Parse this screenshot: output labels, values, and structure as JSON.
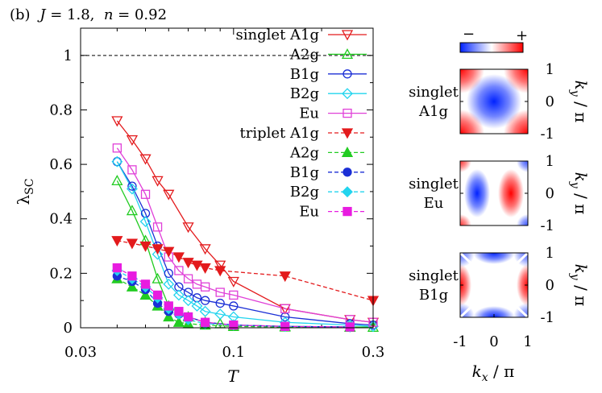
{
  "figure": {
    "panel_tag": "(b)",
    "title_math": {
      "J_symbol": "J",
      "J_eq": " = 1.8,  ",
      "n_symbol": "n",
      "n_eq": " = 0.92"
    }
  },
  "chart_data": {
    "type": "line",
    "x_scale": "log",
    "xlim": [
      0.03,
      0.3
    ],
    "ylim": [
      0,
      1.1
    ],
    "xlabel": "T",
    "ylabel": {
      "main": "λ",
      "sub": "SC"
    },
    "x_ticks": [
      {
        "value": 0.03,
        "label": "0.03"
      },
      {
        "value": 0.1,
        "label": "0.1"
      },
      {
        "value": 0.3,
        "label": "0.3"
      }
    ],
    "y_ticks": [
      {
        "value": 0,
        "label": "0"
      },
      {
        "value": 0.2,
        "label": "0.2"
      },
      {
        "value": 0.4,
        "label": "0.4"
      },
      {
        "value": 0.6,
        "label": "0.6"
      },
      {
        "value": 0.8,
        "label": "0.8"
      },
      {
        "value": 1,
        "label": "1"
      }
    ],
    "reference_line": {
      "y": 1.0,
      "style": "dashed"
    },
    "legend_placement": "top-right",
    "series": [
      {
        "name": "A1g",
        "legend_label": "singlet A1g",
        "color": "#e31a1c",
        "marker": "triangle-down-open",
        "dash": "solid",
        "x": [
          0.04,
          0.045,
          0.05,
          0.055,
          0.06,
          0.07,
          0.08,
          0.09,
          0.1,
          0.15,
          0.25,
          0.3
        ],
        "y": [
          0.76,
          0.69,
          0.62,
          0.54,
          0.49,
          0.37,
          0.29,
          0.23,
          0.17,
          0.07,
          0.03,
          0.02
        ]
      },
      {
        "name": "A2g",
        "legend_label": "A2g",
        "color": "#22cc22",
        "marker": "triangle-up-open",
        "dash": "solid",
        "x": [
          0.04,
          0.045,
          0.05,
          0.055,
          0.06,
          0.07,
          0.08,
          0.09,
          0.1,
          0.15,
          0.25,
          0.3
        ],
        "y": [
          0.54,
          0.43,
          0.32,
          0.18,
          0.08,
          0.04,
          0.02,
          0.015,
          0.01,
          0.005,
          0.003,
          0.002
        ]
      },
      {
        "name": "B1g",
        "legend_label": "B1g",
        "color": "#1b2fd6",
        "marker": "circle-open",
        "dash": "solid",
        "x": [
          0.04,
          0.045,
          0.05,
          0.055,
          0.06,
          0.065,
          0.07,
          0.075,
          0.08,
          0.09,
          0.1,
          0.15,
          0.25,
          0.3
        ],
        "y": [
          0.61,
          0.52,
          0.42,
          0.3,
          0.2,
          0.15,
          0.13,
          0.11,
          0.1,
          0.09,
          0.08,
          0.04,
          0.015,
          0.01
        ]
      },
      {
        "name": "B2g",
        "legend_label": "B2g",
        "color": "#22d4ee",
        "marker": "diamond-open",
        "dash": "solid",
        "x": [
          0.04,
          0.045,
          0.05,
          0.055,
          0.06,
          0.065,
          0.07,
          0.075,
          0.08,
          0.09,
          0.1,
          0.15,
          0.25,
          0.3
        ],
        "y": [
          0.61,
          0.51,
          0.39,
          0.27,
          0.16,
          0.12,
          0.1,
          0.08,
          0.06,
          0.05,
          0.04,
          0.02,
          0.01,
          0.005
        ]
      },
      {
        "name": "Eu",
        "legend_label": "Eu",
        "color": "#e040d8",
        "marker": "square-open",
        "dash": "solid",
        "x": [
          0.04,
          0.045,
          0.05,
          0.055,
          0.06,
          0.065,
          0.07,
          0.075,
          0.08,
          0.09,
          0.1,
          0.15,
          0.25,
          0.3
        ],
        "y": [
          0.66,
          0.58,
          0.49,
          0.37,
          0.26,
          0.21,
          0.18,
          0.16,
          0.15,
          0.13,
          0.12,
          0.07,
          0.03,
          0.02
        ]
      },
      {
        "name": "triplet A1g",
        "legend_label": "triplet A1g",
        "color": "#e31a1c",
        "marker": "triangle-down-filled",
        "dash": "dashed",
        "x": [
          0.04,
          0.045,
          0.05,
          0.055,
          0.06,
          0.065,
          0.07,
          0.075,
          0.08,
          0.09,
          0.15,
          0.3
        ],
        "y": [
          0.32,
          0.31,
          0.3,
          0.29,
          0.28,
          0.26,
          0.24,
          0.23,
          0.22,
          0.21,
          0.19,
          0.1
        ]
      },
      {
        "name": "triplet A2g",
        "legend_label": "A2g",
        "color": "#22cc22",
        "marker": "triangle-up-filled",
        "dash": "dashed",
        "x": [
          0.04,
          0.045,
          0.05,
          0.055,
          0.06,
          0.065,
          0.07,
          0.08,
          0.1,
          0.15,
          0.25
        ],
        "y": [
          0.18,
          0.15,
          0.12,
          0.08,
          0.04,
          0.02,
          0.015,
          0.01,
          0.005,
          0.003,
          0.002
        ]
      },
      {
        "name": "triplet B1g",
        "legend_label": "B1g",
        "color": "#1b2fd6",
        "marker": "circle-filled",
        "dash": "dashed",
        "x": [
          0.04,
          0.045,
          0.05,
          0.055,
          0.06,
          0.065,
          0.07,
          0.08,
          0.1,
          0.15,
          0.25
        ],
        "y": [
          0.19,
          0.17,
          0.14,
          0.09,
          0.06,
          0.05,
          0.04,
          0.02,
          0.01,
          0.005,
          0.003
        ]
      },
      {
        "name": "triplet B2g",
        "legend_label": "B2g",
        "color": "#22d4ee",
        "marker": "diamond-filled",
        "dash": "dashed",
        "x": [
          0.04,
          0.045,
          0.05,
          0.055,
          0.06,
          0.065,
          0.07,
          0.08,
          0.1,
          0.15,
          0.25
        ],
        "y": [
          0.21,
          0.18,
          0.15,
          0.11,
          0.07,
          0.05,
          0.03,
          0.015,
          0.01,
          0.005,
          0.003
        ]
      },
      {
        "name": "triplet Eu",
        "legend_label": "Eu",
        "color": "#e81ce0",
        "marker": "square-filled",
        "dash": "dashed",
        "x": [
          0.04,
          0.045,
          0.05,
          0.055,
          0.06,
          0.065,
          0.07,
          0.08,
          0.1,
          0.15,
          0.25
        ],
        "y": [
          0.22,
          0.19,
          0.16,
          0.12,
          0.08,
          0.06,
          0.04,
          0.02,
          0.01,
          0.005,
          0.003
        ]
      }
    ],
    "colorbar": {
      "low_label": "−",
      "high_label": "+",
      "colors": [
        "#0022ff",
        "#ffffff",
        "#ff0000"
      ]
    },
    "maps": {
      "x_ticks": [
        {
          "value": -1,
          "label": "-1"
        },
        {
          "value": 0,
          "label": "0"
        },
        {
          "value": 1,
          "label": "1"
        }
      ],
      "y_ticks": [
        {
          "value": -1,
          "label": "-1"
        },
        {
          "value": 0,
          "label": "0"
        },
        {
          "value": 1,
          "label": "1"
        }
      ],
      "ylabel": {
        "k": "k",
        "sub": "y",
        "rest": " / π"
      },
      "xlabel": {
        "k": "k",
        "sub": "x",
        "rest": " / π"
      },
      "panels": [
        {
          "label_line1": "singlet",
          "label_line2": "A1g",
          "symmetry": "A1g"
        },
        {
          "label_line1": "singlet",
          "label_line2": "Eu",
          "symmetry": "Eu"
        },
        {
          "label_line1": "singlet",
          "label_line2": "B1g",
          "symmetry": "B1g"
        }
      ]
    }
  }
}
